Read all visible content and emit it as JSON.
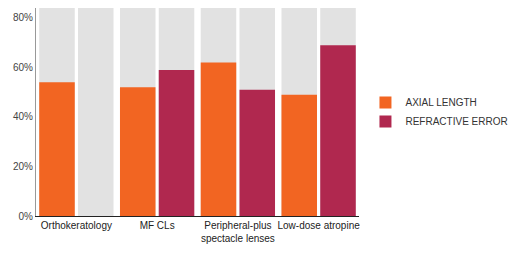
{
  "chart_data": {
    "type": "bar",
    "categories": [
      "Orthokeratology",
      "MF CLs",
      "Peripheral-plus\nspectacle lenses",
      "Low-dose atropine"
    ],
    "series": [
      {
        "name": "AXIAL LENGTH",
        "color": "#f26522",
        "values": [
          54,
          52,
          62,
          49
        ]
      },
      {
        "name": "REFRACTIVE ERROR",
        "color": "#b0284f",
        "values": [
          null,
          59,
          51,
          69
        ]
      }
    ],
    "ylim": [
      0,
      84
    ],
    "yticks": [
      {
        "value": 0,
        "label": "0%"
      },
      {
        "value": 20,
        "label": "20%"
      },
      {
        "value": 40,
        "label": "40%"
      },
      {
        "value": 60,
        "label": "60%"
      },
      {
        "value": 80,
        "label": "80%"
      }
    ],
    "legend": "right",
    "grid": false
  }
}
